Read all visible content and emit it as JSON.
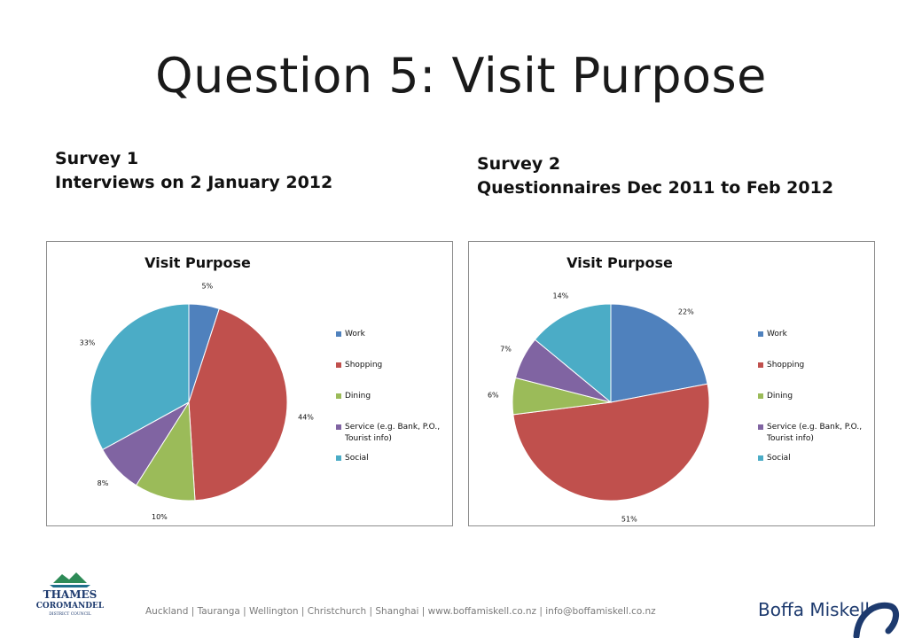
{
  "title": "Question 5: Visit Purpose",
  "survey1": {
    "line1": "Survey 1",
    "line2": "Interviews on 2 January 2012"
  },
  "survey2": {
    "line1": "Survey 2",
    "line2": "Questionnaires Dec 2011 to Feb 2012"
  },
  "legend_colors": [
    "#4f81bd",
    "#c0504d",
    "#9bbb59",
    "#8064a2",
    "#4bacc6"
  ],
  "chart_data": [
    {
      "type": "pie",
      "title": "Visit Purpose",
      "categories": [
        "Work",
        "Shopping",
        "Dining",
        "Service (e.g. Bank, P.O., Tourist info)",
        "Social"
      ],
      "legend_lines": [
        [
          "Work"
        ],
        [
          "Shopping"
        ],
        [
          "Dining"
        ],
        [
          "Service (e.g. Bank, P.O.,",
          "Tourist info)"
        ],
        [
          "Social"
        ]
      ],
      "values": [
        5,
        44,
        10,
        8,
        33
      ],
      "labels": [
        "5%",
        "44%",
        "10%",
        "8%",
        "33%"
      ],
      "legend": "right"
    },
    {
      "type": "pie",
      "title": "Visit Purpose",
      "categories": [
        "Work",
        "Shopping",
        "Dining",
        "Service (e.g. Bank, P.O., Tourist info)",
        "Social"
      ],
      "legend_lines": [
        [
          "Work"
        ],
        [
          "Shopping"
        ],
        [
          "Dining"
        ],
        [
          "Service (e.g. Bank, P.O.,",
          "Tourist info)"
        ],
        [
          "Social"
        ]
      ],
      "values": [
        22,
        51,
        6,
        7,
        14
      ],
      "labels": [
        "22%",
        "51%",
        "6%",
        "7%",
        "14%"
      ],
      "legend": "right"
    }
  ],
  "footer": {
    "logo_text": [
      "THAMES",
      "COROMANDEL",
      "DISTRICT COUNCIL"
    ],
    "contact": "Auckland  |  Tauranga  |  Wellington  |  Christchurch  |  Shanghai  |  www.boffamiskell.co.nz  |  info@boffamiskell.co.nz",
    "brand": "Boffa Miskell"
  }
}
